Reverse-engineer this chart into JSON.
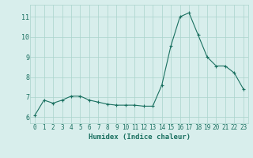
{
  "x": [
    0,
    1,
    2,
    3,
    4,
    5,
    6,
    7,
    8,
    9,
    10,
    11,
    12,
    13,
    14,
    15,
    16,
    17,
    18,
    19,
    20,
    21,
    22,
    23
  ],
  "y": [
    6.1,
    6.85,
    6.7,
    6.85,
    7.05,
    7.05,
    6.85,
    6.75,
    6.65,
    6.6,
    6.6,
    6.6,
    6.55,
    6.55,
    7.6,
    9.55,
    11.0,
    11.2,
    10.1,
    9.0,
    8.55,
    8.55,
    8.2,
    7.4
  ],
  "line_color": "#1a7060",
  "marker": "+",
  "bg_color": "#d8eeec",
  "grid_color": "#aad4cc",
  "xlabel": "Humidex (Indice chaleur)",
  "ylim": [
    5.7,
    11.6
  ],
  "xlim": [
    -0.5,
    23.5
  ],
  "yticks": [
    6,
    7,
    8,
    9,
    10,
    11
  ],
  "xticks": [
    0,
    1,
    2,
    3,
    4,
    5,
    6,
    7,
    8,
    9,
    10,
    11,
    12,
    13,
    14,
    15,
    16,
    17,
    18,
    19,
    20,
    21,
    22,
    23
  ],
  "tick_color": "#1a7060",
  "label_color": "#1a7060",
  "tick_fontsize": 5.5,
  "xlabel_fontsize": 6.5
}
